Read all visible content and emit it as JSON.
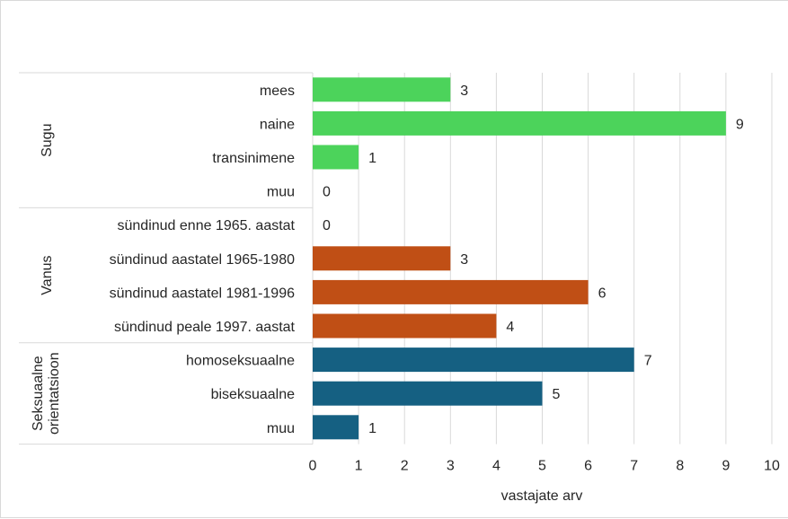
{
  "chart_data": {
    "type": "bar",
    "orientation": "horizontal",
    "title": "",
    "xlabel": "vastajate arv",
    "ylabel": "",
    "xlim": [
      0,
      10
    ],
    "x_ticks": [
      0,
      1,
      2,
      3,
      4,
      5,
      6,
      7,
      8,
      9,
      10
    ],
    "grid": "vertical",
    "legend": "none",
    "groups": [
      {
        "name": "Sugu",
        "color": "#4cd35b",
        "categories": [
          "mees",
          "naine",
          "transinimene",
          "muu"
        ],
        "values": [
          3,
          9,
          1,
          0
        ]
      },
      {
        "name": "Vanus",
        "color": "#c04f15",
        "categories": [
          "sündinud enne 1965. aastat",
          "sündinud aastatel 1965-1980",
          "sündinud aastatel 1981-1996",
          "sündinud peale 1997. aastat"
        ],
        "values": [
          0,
          3,
          6,
          4
        ]
      },
      {
        "name": "Seksuaalne orientatsioon",
        "name_lines": [
          "Seksuaalne",
          "orientatsioon"
        ],
        "color": "#156082",
        "categories": [
          "homoseksuaalne",
          "biseksuaalne",
          "muu"
        ],
        "values": [
          7,
          5,
          1
        ]
      }
    ]
  }
}
